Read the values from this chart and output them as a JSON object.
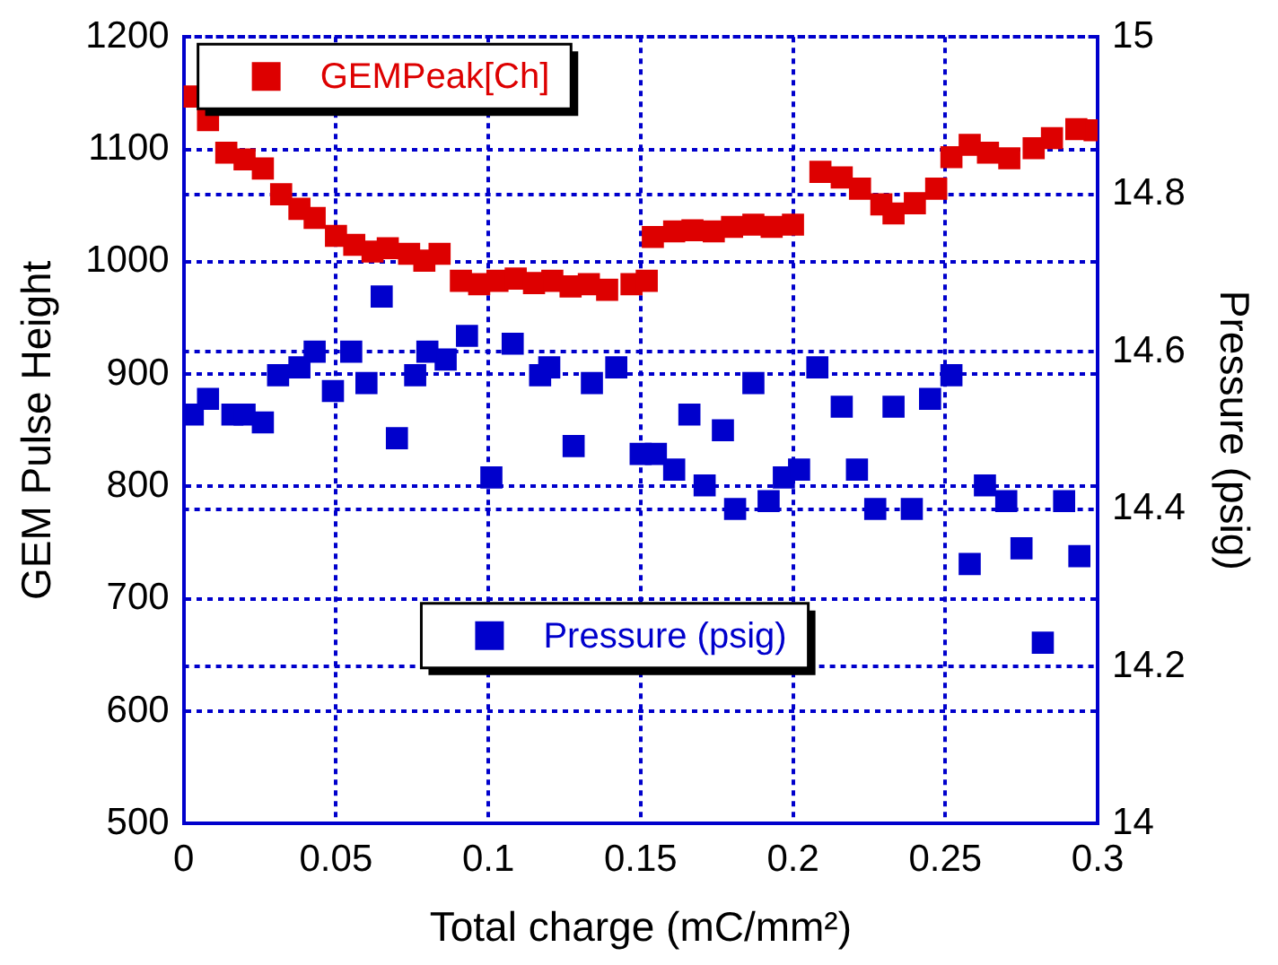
{
  "chart_data": {
    "type": "scatter",
    "xlabel": "Total charge (mC/mm²)",
    "ylabel": "GEM Pulse Height",
    "y2label": "Pressure (psig)",
    "xlim": [
      0,
      0.3
    ],
    "xticks": [
      0,
      0.05,
      0.1,
      0.15,
      0.2,
      0.25,
      0.3
    ],
    "ylim": [
      500,
      1200
    ],
    "yticks": [
      500,
      600,
      700,
      800,
      900,
      1000,
      1100,
      1200
    ],
    "y2lim": [
      14,
      15
    ],
    "y2ticks": [
      14,
      14.2,
      14.4,
      14.6,
      14.8,
      15
    ],
    "grid": true,
    "legend": "top left",
    "marker": "square",
    "series": [
      {
        "name": "GEMPeak[Ch]",
        "color": "#dd0000",
        "x": [
          0.002,
          0.008,
          0.014,
          0.02,
          0.026,
          0.032,
          0.038,
          0.043,
          0.05,
          0.056,
          0.062,
          0.067,
          0.074,
          0.079,
          0.084,
          0.091,
          0.097,
          0.103,
          0.109,
          0.115,
          0.121,
          0.127,
          0.133,
          0.139,
          0.147,
          0.152,
          0.154,
          0.161,
          0.167,
          0.174,
          0.18,
          0.187,
          0.193,
          0.2,
          0.209,
          0.216,
          0.222,
          0.229,
          0.233,
          0.24,
          0.247,
          0.252,
          0.258,
          0.264,
          0.271,
          0.279,
          0.285,
          0.293,
          0.299
        ],
        "values": [
          1147,
          1126,
          1097,
          1091,
          1083,
          1060,
          1047,
          1039,
          1023,
          1015,
          1009,
          1012,
          1007,
          1001,
          1007,
          983,
          980,
          983,
          985,
          981,
          983,
          978,
          980,
          975,
          980,
          983,
          1022,
          1027,
          1028,
          1027,
          1031,
          1033,
          1031,
          1033,
          1080,
          1075,
          1065,
          1051,
          1043,
          1052,
          1065,
          1093,
          1104,
          1097,
          1092,
          1101,
          1110,
          1118,
          1117
        ]
      },
      {
        "name": "Pressure (psig)",
        "color": "#0000cc",
        "axis": "y2",
        "x": [
          0.003,
          0.008,
          0.016,
          0.02,
          0.026,
          0.031,
          0.038,
          0.043,
          0.049,
          0.055,
          0.06,
          0.065,
          0.07,
          0.076,
          0.08,
          0.086,
          0.093,
          0.101,
          0.108,
          0.117,
          0.12,
          0.128,
          0.134,
          0.142,
          0.15,
          0.155,
          0.161,
          0.166,
          0.171,
          0.177,
          0.181,
          0.187,
          0.192,
          0.197,
          0.202,
          0.208,
          0.216,
          0.221,
          0.227,
          0.233,
          0.239,
          0.245,
          0.252,
          0.258,
          0.263,
          0.27,
          0.275,
          0.282,
          0.289,
          0.294
        ],
        "values": [
          14.52,
          14.54,
          14.52,
          14.52,
          14.51,
          14.57,
          14.58,
          14.6,
          14.55,
          14.6,
          14.56,
          14.67,
          14.49,
          14.57,
          14.6,
          14.59,
          14.62,
          14.44,
          14.61,
          14.57,
          14.58,
          14.48,
          14.56,
          14.58,
          14.47,
          14.47,
          14.45,
          14.52,
          14.43,
          14.5,
          14.4,
          14.56,
          14.41,
          14.44,
          14.45,
          14.58,
          14.53,
          14.45,
          14.4,
          14.53,
          14.4,
          14.54,
          14.57,
          14.33,
          14.43,
          14.41,
          14.35,
          14.23,
          14.41,
          14.34
        ]
      }
    ]
  }
}
